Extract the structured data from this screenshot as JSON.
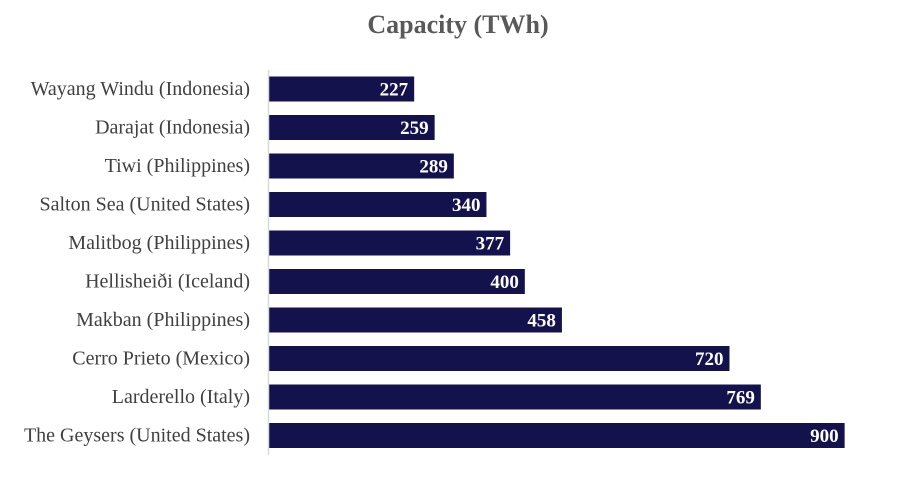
{
  "chart_data": {
    "type": "bar",
    "orientation": "horizontal",
    "title": "Capacity (TWh)",
    "xlabel": "",
    "ylabel": "",
    "categories": [
      "Wayang Windu (Indonesia)",
      "Darajat (Indonesia)",
      "Tiwi (Philippines)",
      "Salton Sea (United States)",
      "Malitbog (Philippines)",
      "Hellisheiði (Iceland)",
      "Makban (Philippines)",
      "Cerro Prieto (Mexico)",
      "Larderello (Italy)",
      "The Geysers (United States)"
    ],
    "values": [
      227,
      259,
      289,
      340,
      377,
      400,
      458,
      720,
      769,
      900
    ],
    "data_labels": [
      "227",
      "259",
      "289",
      "340",
      "377",
      "400",
      "458",
      "720",
      "769",
      "900"
    ],
    "xlim": [
      0,
      935
    ],
    "grid": false,
    "legend": "none",
    "colors": {
      "bar": "#14124c",
      "axis": "#d9d9d9",
      "title": "#595959",
      "label": "#404040",
      "value_text": "#ffffff"
    }
  }
}
